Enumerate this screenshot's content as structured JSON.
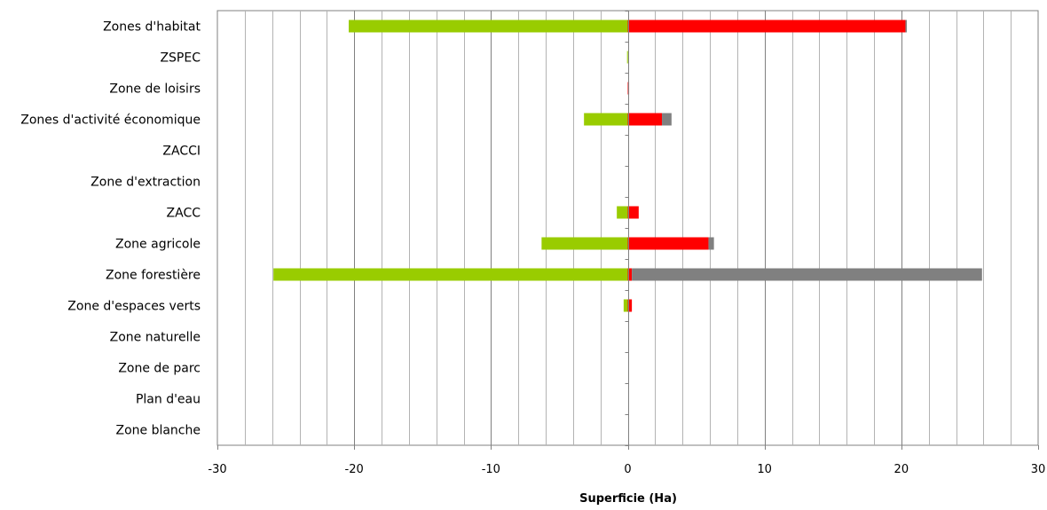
{
  "chart_data": {
    "type": "bar",
    "orientation": "horizontal",
    "stacked": true,
    "categories": [
      "Zones d'habitat",
      "ZSPEC",
      "Zone de loisirs",
      "Zones d'activité économique",
      "ZACCI",
      "Zone d'extraction",
      "ZACC",
      "Zone agricole",
      "Zone forestière",
      "Zone d'espaces verts",
      "Zone naturelle",
      "Zone de parc",
      "Plan d'eau",
      "Zone blanche"
    ],
    "series": [
      {
        "color": "#99cc00",
        "values": [
          -20.4,
          -0.05,
          0,
          -3.2,
          0,
          0,
          -0.8,
          -6.3,
          -25.9,
          -0.3,
          0,
          0,
          0,
          0
        ]
      },
      {
        "color": "#ff0000",
        "values": [
          20.3,
          0,
          0.1,
          2.5,
          0,
          0,
          0.8,
          5.9,
          0.3,
          0.3,
          0,
          0,
          0,
          0
        ]
      },
      {
        "color": "#808080",
        "values": [
          0.1,
          0,
          0,
          0.7,
          0,
          0,
          0,
          0.4,
          25.6,
          0,
          0,
          0,
          0,
          0
        ]
      }
    ],
    "xlim": [
      -30,
      30
    ],
    "major_ticks": [
      -30,
      -20,
      -10,
      0,
      10,
      20,
      30
    ],
    "minor_step": 2,
    "xlabel": "Superficie (Ha)",
    "ylabel": "",
    "title": "",
    "grid": true
  }
}
